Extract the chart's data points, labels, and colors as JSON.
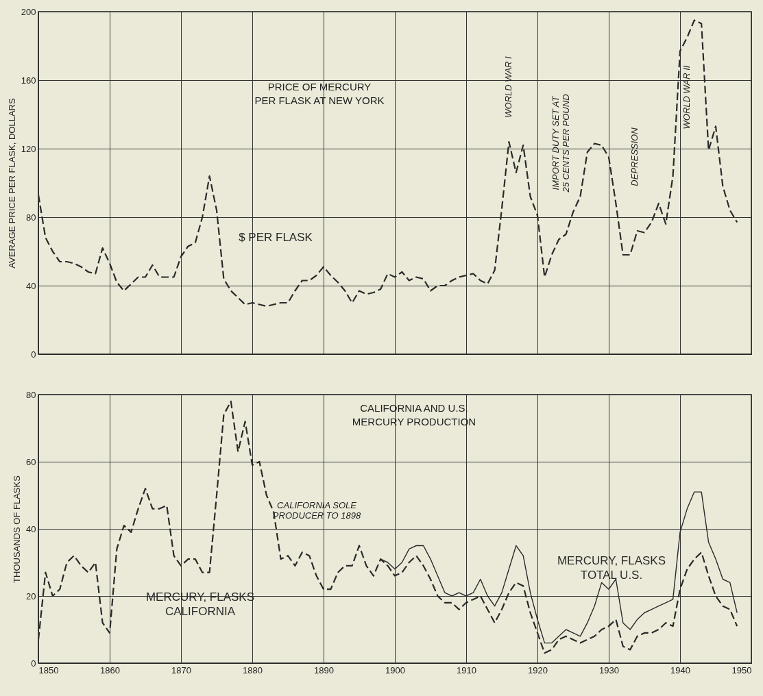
{
  "chart_data": [
    {
      "type": "line",
      "title": "PRICE OF MERCURY\nPER FLASK AT NEW YORK",
      "ylabel": "AVERAGE PRICE PER FLASK, DOLLARS",
      "x": [
        1850,
        1851,
        1852,
        1853,
        1854,
        1855,
        1856,
        1857,
        1858,
        1859,
        1860,
        1861,
        1862,
        1863,
        1864,
        1865,
        1866,
        1867,
        1868,
        1869,
        1870,
        1871,
        1872,
        1873,
        1874,
        1875,
        1876,
        1877,
        1878,
        1879,
        1880,
        1881,
        1882,
        1883,
        1884,
        1885,
        1886,
        1887,
        1888,
        1889,
        1890,
        1891,
        1892,
        1893,
        1894,
        1895,
        1896,
        1897,
        1898,
        1899,
        1900,
        1901,
        1902,
        1903,
        1904,
        1905,
        1906,
        1907,
        1908,
        1909,
        1910,
        1911,
        1912,
        1913,
        1914,
        1915,
        1916,
        1917,
        1918,
        1919,
        1920,
        1921,
        1922,
        1923,
        1924,
        1925,
        1926,
        1927,
        1928,
        1929,
        1930,
        1931,
        1932,
        1933,
        1934,
        1935,
        1936,
        1937,
        1938,
        1939,
        1940,
        1941,
        1942,
        1943,
        1944,
        1945,
        1946,
        1947,
        1948
      ],
      "series": [
        {
          "name": "$ PER FLASK",
          "color": "#2a2a2a",
          "line_style": "dashed",
          "values": [
            93,
            68,
            60,
            54,
            54,
            53,
            51,
            48,
            47,
            62,
            53,
            42,
            37,
            41,
            45,
            45,
            52,
            45,
            45,
            45,
            57,
            63,
            65,
            80,
            104,
            84,
            44,
            37,
            33,
            29,
            30,
            29,
            28,
            29,
            30,
            30,
            37,
            43,
            43,
            46,
            51,
            46,
            42,
            37,
            30,
            37,
            35,
            36,
            38,
            47,
            45,
            48,
            43,
            45,
            44,
            37,
            40,
            40,
            43,
            45,
            46,
            47,
            43,
            41,
            49,
            85,
            124,
            106,
            122,
            92,
            81,
            45,
            58,
            67,
            70,
            83,
            92,
            118,
            123,
            122,
            115,
            88,
            58,
            58,
            72,
            71,
            77,
            88,
            76,
            104,
            177,
            185,
            195,
            193,
            119,
            133,
            98,
            84,
            77
          ]
        }
      ],
      "annotations": [
        "WORLD WAR I",
        "IMPORT DUTY SET AT\n25 CENTS PER POUND",
        "DEPRESSION",
        "WORLD WAR II"
      ],
      "xlim": [
        1850,
        1950
      ],
      "xticks": [
        1850,
        1860,
        1870,
        1880,
        1890,
        1900,
        1910,
        1920,
        1930,
        1940,
        1950
      ],
      "ylim": [
        0,
        200
      ],
      "yticks": [
        0,
        40,
        80,
        120,
        160,
        200
      ],
      "grid": true,
      "tick_labels": "y"
    },
    {
      "type": "line",
      "title": "CALIFORNIA AND U.S.\nMERCURY PRODUCTION",
      "ylabel": "THOUSANDS OF FLASKS",
      "x": [
        1850,
        1851,
        1852,
        1853,
        1854,
        1855,
        1856,
        1857,
        1858,
        1859,
        1860,
        1861,
        1862,
        1863,
        1864,
        1865,
        1866,
        1867,
        1868,
        1869,
        1870,
        1871,
        1872,
        1873,
        1874,
        1875,
        1876,
        1877,
        1878,
        1879,
        1880,
        1881,
        1882,
        1883,
        1884,
        1885,
        1886,
        1887,
        1888,
        1889,
        1890,
        1891,
        1892,
        1893,
        1894,
        1895,
        1896,
        1897,
        1898,
        1899,
        1900,
        1901,
        1902,
        1903,
        1904,
        1905,
        1906,
        1907,
        1908,
        1909,
        1910,
        1911,
        1912,
        1913,
        1914,
        1915,
        1916,
        1917,
        1918,
        1919,
        1920,
        1921,
        1922,
        1923,
        1924,
        1925,
        1926,
        1927,
        1928,
        1929,
        1930,
        1931,
        1932,
        1933,
        1934,
        1935,
        1936,
        1937,
        1938,
        1939,
        1940,
        1941,
        1942,
        1943,
        1944,
        1945,
        1946,
        1947,
        1948
      ],
      "series": [
        {
          "name": "MERCURY, FLASKS\nCALIFORNIA",
          "color": "#2a2a2a",
          "line_style": "dashed",
          "values": [
            7,
            27,
            20,
            22,
            30,
            32,
            29,
            27,
            30,
            12,
            9,
            34,
            41,
            39,
            46,
            52,
            46,
            46,
            47,
            32,
            29,
            31,
            31,
            27,
            27,
            50,
            74,
            78,
            63,
            72,
            59,
            60,
            50,
            45,
            31,
            32,
            29,
            33,
            32,
            26,
            22,
            22,
            27,
            29,
            29,
            35,
            29,
            26,
            31,
            29,
            26,
            27,
            30,
            32,
            29,
            25,
            20,
            18,
            18,
            16,
            18,
            19,
            20,
            16,
            12,
            16,
            21,
            24,
            23,
            15,
            9,
            3,
            4,
            7,
            8,
            7,
            6,
            7,
            8,
            10,
            11,
            13,
            5,
            4,
            8,
            9,
            9,
            10,
            12,
            11,
            22,
            28,
            31,
            33,
            26,
            20,
            17,
            16,
            11
          ]
        },
        {
          "name": "MERCURY, FLASKS\nTOTAL U.S.",
          "color": "#2a2a2a",
          "line_style": "solid",
          "x": [
            1898,
            1899,
            1900,
            1901,
            1902,
            1903,
            1904,
            1905,
            1906,
            1907,
            1908,
            1909,
            1910,
            1911,
            1912,
            1913,
            1914,
            1915,
            1916,
            1917,
            1918,
            1919,
            1920,
            1921,
            1922,
            1923,
            1924,
            1925,
            1926,
            1927,
            1928,
            1929,
            1930,
            1931,
            1932,
            1933,
            1934,
            1935,
            1936,
            1937,
            1938,
            1939,
            1940,
            1941,
            1942,
            1943,
            1944,
            1945,
            1946,
            1947,
            1948
          ],
          "values": [
            31,
            30,
            28,
            30,
            34,
            35,
            35,
            31,
            26,
            21,
            20,
            21,
            20,
            21,
            25,
            20,
            17,
            21,
            28,
            35,
            32,
            21,
            13,
            6,
            6,
            8,
            10,
            9,
            8,
            12,
            17,
            24,
            22,
            25,
            12,
            10,
            13,
            15,
            16,
            17,
            18,
            19,
            39,
            46,
            51,
            51,
            36,
            31,
            25,
            24,
            15
          ]
        }
      ],
      "annotations": [
        "CALIFORNIA SOLE\nPRODUCER TO 1898"
      ],
      "xlim": [
        1850,
        1950
      ],
      "xticks": [
        1850,
        1860,
        1870,
        1880,
        1890,
        1900,
        1910,
        1920,
        1930,
        1940,
        1950
      ],
      "ylim": [
        0,
        80
      ],
      "yticks": [
        0,
        20,
        40,
        60,
        80
      ],
      "grid": true
    }
  ]
}
